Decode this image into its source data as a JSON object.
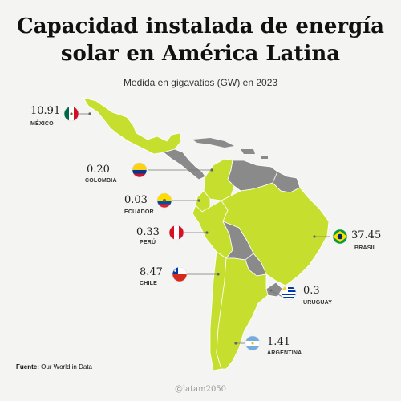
{
  "title_line1": "Capacidad instalada de energía",
  "title_line2": "solar en América Latina",
  "subtitle": "Medida en gigavatios (GW) en 2023",
  "source_label": "Fuente:",
  "source_value": "Our World in Data",
  "handle": "@latam2050",
  "colors": {
    "highlight": "#c6df2e",
    "other": "#8a8a8a",
    "background": "#f4f4f2"
  },
  "countries": [
    {
      "id": "mexico",
      "name": "MÉXICO",
      "value": "10.91",
      "flag": "mexico-flag"
    },
    {
      "id": "colombia",
      "name": "COLOMBIA",
      "value": "0.20",
      "flag": "colombia-flag"
    },
    {
      "id": "ecuador",
      "name": "ECUADOR",
      "value": "0.03",
      "flag": "ecuador-flag"
    },
    {
      "id": "peru",
      "name": "PERÚ",
      "value": "0.33",
      "flag": "peru-flag"
    },
    {
      "id": "chile",
      "name": "CHILE",
      "value": "8.47",
      "flag": "chile-flag"
    },
    {
      "id": "brasil",
      "name": "BRASIL",
      "value": "37.45",
      "flag": "brazil-flag"
    },
    {
      "id": "uruguay",
      "name": "URUGUAY",
      "value": "0.3",
      "flag": "uruguay-flag"
    },
    {
      "id": "argentina",
      "name": "ARGENTINA",
      "value": "1.41",
      "flag": "argentina-flag"
    }
  ]
}
